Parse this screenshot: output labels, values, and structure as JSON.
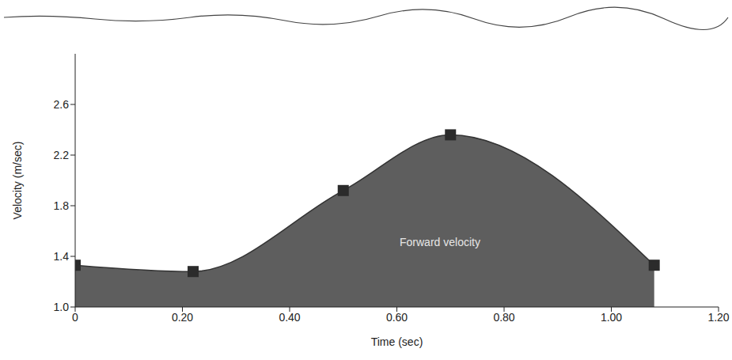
{
  "chart_data": {
    "type": "area",
    "x_label": "Time (sec)",
    "y_label": "Velocity (m/sec)",
    "annotation": "Forward velocity",
    "x": [
      0,
      0.22,
      0.5,
      0.7,
      1.08
    ],
    "values": [
      1.33,
      1.28,
      1.92,
      2.36,
      1.33
    ],
    "color": "#5e5e5e",
    "marker": "square",
    "xlim": [
      0,
      1.2
    ],
    "xticks": [
      0,
      {
        "value": 0.2,
        "label": "0.20"
      },
      {
        "value": 0.4,
        "label": "0.40"
      },
      {
        "value": 0.6,
        "label": "0.60"
      },
      {
        "value": 0.8,
        "label": "0.80"
      },
      {
        "value": 1,
        "label": "1.00"
      },
      {
        "value": 1.2,
        "label": "1.20"
      }
    ],
    "ylim": [
      1,
      3
    ],
    "yticks": [
      {
        "value": 1,
        "label": "1.0"
      },
      1.4,
      1.8,
      2.2,
      2.6
    ],
    "grid": false
  }
}
